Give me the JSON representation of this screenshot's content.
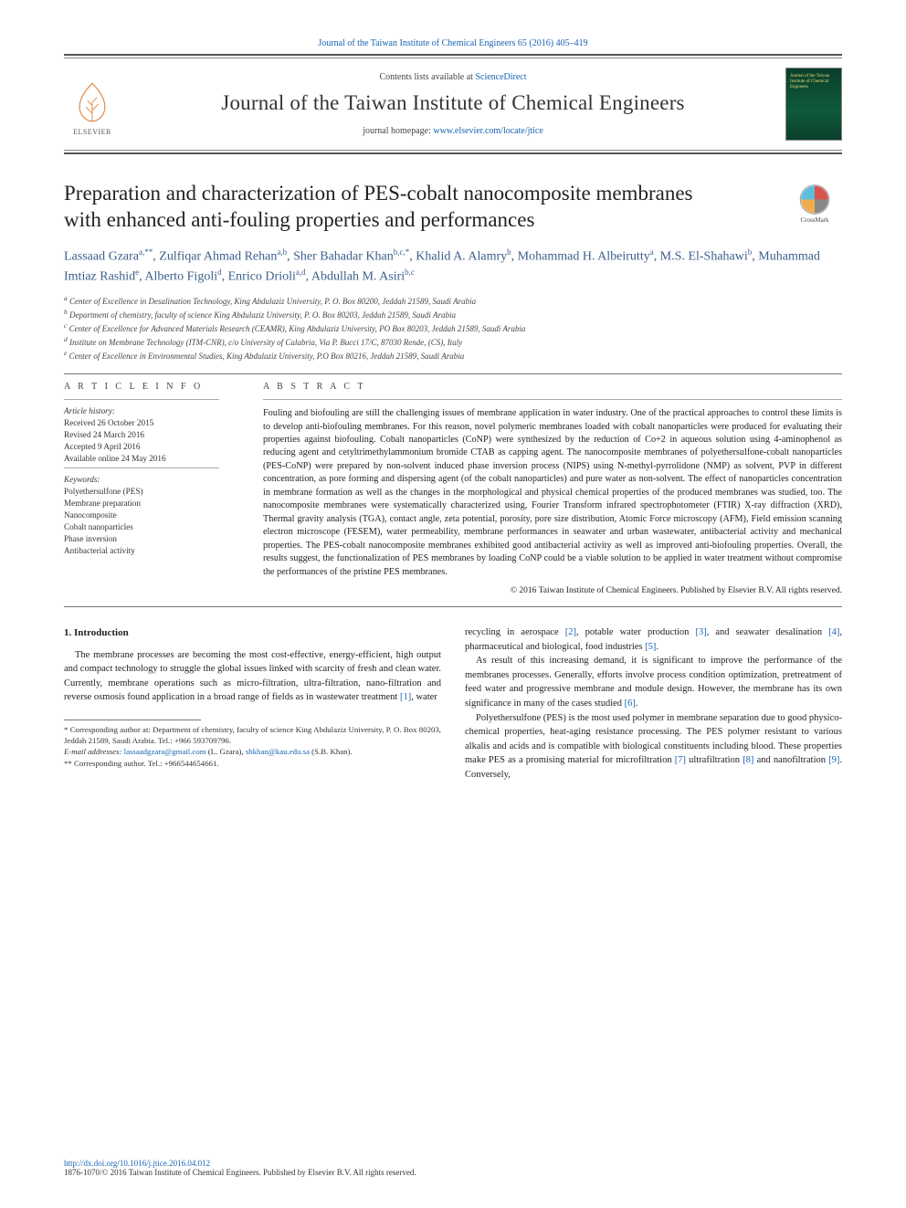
{
  "header": {
    "journal_line": "Journal of the Taiwan Institute of Chemical Engineers 65 (2016) 405–419",
    "contents_prefix": "Contents lists available at ",
    "contents_link": "ScienceDirect",
    "journal_title": "Journal of the Taiwan Institute of Chemical Engineers",
    "homepage_prefix": "journal homepage: ",
    "homepage_link": "www.elsevier.com/locate/jtice",
    "elsevier_label": "ELSEVIER",
    "cover_text": "Journal of the Taiwan Institute of Chemical Engineers"
  },
  "crossmark_label": "CrossMark",
  "paper": {
    "title": "Preparation and characterization of PES-cobalt nanocomposite membranes with enhanced anti-fouling properties and performances",
    "authors_html": "Lassaad Gzara<sup>a,**</sup>, Zulfiqar Ahmad Rehan<sup>a,b</sup>, Sher Bahadar Khan<sup>b,c,*</sup>, Khalid A. Alamry<sup>b</sup>, Mohammad H. Albeirutty<sup>a</sup>, M.S. El-Shahawi<sup>b</sup>, Muhammad Imtiaz Rashid<sup>e</sup>, Alberto Figoli<sup>d</sup>, Enrico Drioli<sup>a,d</sup>, Abdullah M. Asiri<sup>b,c</sup>",
    "affiliations": [
      "a Center of Excellence in Desalination Technology, King Abdulaziz University, P. O. Box 80200, Jeddah 21589, Saudi Arabia",
      "b Department of chemistry, faculty of science King Abdulaziz University, P. O. Box 80203, Jeddah 21589, Saudi Arabia",
      "c Center of Excellence for Advanced Materials Research (CEAMR), King Abdulaziz University, PO Box 80203, Jeddah 21589, Saudi Arabia",
      "d Institute on Membrane Technology (ITM-CNR), c/o University of Calabria, Via P. Bucci 17/C, 87030 Rende, (CS), Italy",
      "e Center of Excellence in Environmental Studies, King Abdulaziz University, P.O Box 80216, Jeddah 21589, Saudi Arabia"
    ]
  },
  "article_info": {
    "head": "A R T I C L E   I N F O",
    "history_label": "Article history:",
    "history": [
      "Received 26 October 2015",
      "Revised 24 March 2016",
      "Accepted 9 April 2016",
      "Available online 24 May 2016"
    ],
    "keywords_label": "Keywords:",
    "keywords": [
      "Polyethersulfone (PES)",
      "Membrane preparation",
      "Nanocomposite",
      "Cobalt nanoparticles",
      "Phase inversion",
      "Antibacterial activity"
    ]
  },
  "abstract": {
    "head": "A B S T R A C T",
    "text": "Fouling and biofouling are still the challenging issues of membrane application in water industry. One of the practical approaches to control these limits is to develop anti-biofouling membranes. For this reason, novel polymeric membranes loaded with cobalt nanoparticles were produced for evaluating their properties against biofouling. Cobalt nanoparticles (CoNP) were synthesized by the reduction of Co+2 in aqueous solution using 4-aminophenol as reducing agent and cetyltrimethylammonium bromide CTAB as capping agent. The nanocomposite membranes of polyethersulfone-cobalt nanoparticles (PES-CoNP) were prepared by non-solvent induced phase inversion process (NIPS) using N-methyl-pyrrolidone (NMP) as solvent, PVP in different concentration, as pore forming and dispersing agent (of the cobalt nanoparticles) and pure water as non-solvent. The effect of nanoparticles concentration in membrane formation as well as the changes in the morphological and physical chemical properties of the produced membranes was studied, too. The nanocomposite membranes were systematically characterized using, Fourier Transform infrared spectrophotometer (FTIR) X-ray diffraction (XRD), Thermal gravity analysis (TGA), contact angle, zeta potential, porosity, pore size distribution, Atomic Force microscopy (AFM), Field emission scanning electron microscope (FESEM), water permeability, membrane performances in seawater and urban wastewater, antibacterial activity and mechanical properties. The PES-cobalt nanocomposite membranes exhibited good antibacterial activity as well as improved anti-biofouling properties. Overall, the results suggest, the functionalization of PES membranes by loading CoNP could be a viable solution to be applied in water treatment without compromise the performances of the pristine PES membranes.",
    "copyright": "© 2016 Taiwan Institute of Chemical Engineers. Published by Elsevier B.V. All rights reserved."
  },
  "body": {
    "section_head": "1. Introduction",
    "col1_p1": "The membrane processes are becoming the most cost-effective, energy-efficient, high output and compact technology to struggle the global issues linked with scarcity of fresh and clean water. Currently, membrane operations such as micro-filtration, ultra-filtration, nano-filtration and reverse osmosis found application in a broad range of fields as in wastewater treatment [1], water",
    "col2_p1": "recycling in aerospace [2], potable water production [3], and seawater desalination [4], pharmaceutical and biological, food industries [5].",
    "col2_p2": "As result of this increasing demand, it is significant to improve the performance of the membranes processes. Generally, efforts involve process condition optimization, pretreatment of feed water and progressive membrane and module design. However, the membrane has its own significance in many of the cases studied [6].",
    "col2_p3": "Polyethersulfone (PES) is the most used polymer in membrane separation due to good physico-chemical properties, heat-aging resistance processing. The PES polymer resistant to various alkalis and acids and is compatible with biological constituents including blood. These properties make PES as a promising material for microfiltration [7] ultrafiltration [8] and nanofiltration [9]. Conversely,"
  },
  "footnotes": {
    "star": "* Corresponding author at: Department of chemistry, faculty of science King Abdulaziz University, P. O. Box 80203, Jeddah 21589, Saudi Arabia. Tel.: +966 593709796.",
    "email_label": "E-mail addresses: ",
    "email1": "lassaadgzara@gmail.com",
    "email1_who": " (L. Gzara), ",
    "email2": "sbkhan@kau.edu.sa",
    "email2_who": " (S.B. Khan).",
    "dstar": "** Corresponding author. Tel.: +966544654661."
  },
  "footer": {
    "doi": "http://dx.doi.org/10.1016/j.jtice.2016.04.012",
    "copy": "1876-1070/© 2016 Taiwan Institute of Chemical Engineers. Published by Elsevier B.V. All rights reserved."
  },
  "colors": {
    "link": "#1864b4",
    "author": "#3a5f8a",
    "rule": "#777777"
  }
}
